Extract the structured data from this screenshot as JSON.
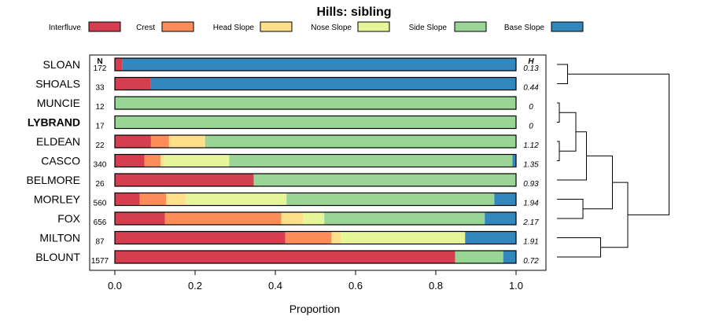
{
  "chart_data": {
    "type": "bar",
    "subtype": "stacked-horizontal-proportion-with-dendrogram",
    "title": "Hills: sibling",
    "xlabel": "Proportion",
    "ylabel": "",
    "xlim": [
      0,
      1
    ],
    "x_ticks": [
      "0.0",
      "0.2",
      "0.4",
      "0.6",
      "0.8",
      "1.0"
    ],
    "x_tick_values": [
      0,
      0.2,
      0.4,
      0.6,
      0.8,
      1.0
    ],
    "legend": {
      "position": "top",
      "items": [
        {
          "label": "Interfluve",
          "color": "#D53E4F"
        },
        {
          "label": "Crest",
          "color": "#FC8D59"
        },
        {
          "label": "Head Slope",
          "color": "#FEE08B"
        },
        {
          "label": "Nose Slope",
          "color": "#E6F598"
        },
        {
          "label": "Side Slope",
          "color": "#99D594"
        },
        {
          "label": "Base Slope",
          "color": "#3288BD"
        }
      ]
    },
    "n_header": "N",
    "h_header": "H",
    "rows": [
      {
        "name": "SLOAN",
        "n": "172",
        "h": "0.13",
        "bold": false,
        "values": [
          0.018,
          0,
          0,
          0,
          0,
          0.982
        ]
      },
      {
        "name": "SHOALS",
        "n": "33",
        "h": "0.44",
        "bold": false,
        "values": [
          0.09,
          0,
          0,
          0,
          0,
          0.91
        ]
      },
      {
        "name": "MUNCIE",
        "n": "12",
        "h": "0",
        "bold": false,
        "values": [
          0,
          0,
          0,
          0,
          1.0,
          0
        ]
      },
      {
        "name": "LYBRAND",
        "n": "17",
        "h": "0",
        "bold": true,
        "values": [
          0,
          0,
          0,
          0,
          1.0,
          0
        ]
      },
      {
        "name": "ELDEAN",
        "n": "22",
        "h": "1.12",
        "bold": false,
        "values": [
          0.09,
          0.045,
          0.09,
          0,
          0.775,
          0
        ]
      },
      {
        "name": "CASCO",
        "n": "340",
        "h": "1.35",
        "bold": false,
        "values": [
          0.074,
          0.04,
          0.009,
          0.162,
          0.706,
          0.009
        ]
      },
      {
        "name": "BELMORE",
        "n": "26",
        "h": "0.93",
        "bold": false,
        "values": [
          0.346,
          0,
          0,
          0,
          0.654,
          0
        ]
      },
      {
        "name": "MORLEY",
        "n": "560",
        "h": "1.94",
        "bold": false,
        "values": [
          0.062,
          0.066,
          0.05,
          0.25,
          0.518,
          0.054
        ]
      },
      {
        "name": "FOX",
        "n": "656",
        "h": "2.17",
        "bold": false,
        "values": [
          0.125,
          0.29,
          0.055,
          0.052,
          0.4,
          0.078
        ]
      },
      {
        "name": "MILTON",
        "n": "87",
        "h": "1.91",
        "bold": false,
        "values": [
          0.425,
          0.115,
          0.023,
          0.31,
          0,
          0.127
        ]
      },
      {
        "name": "BLOUNT",
        "n": "1577",
        "h": "0.72",
        "bold": false,
        "values": [
          0.848,
          0,
          0,
          0,
          0.12,
          0.032
        ]
      }
    ],
    "dendrogram": {
      "merges": [
        {
          "a": "SLOAN",
          "b": "SHOALS",
          "height": 0.09
        },
        {
          "a": "MUNCIE",
          "b": "LYBRAND",
          "height": 0.02
        },
        {
          "a": "ELDEAN",
          "b": "CASCO",
          "height": 0.02
        },
        {
          "a": "MUNCIE+LYBRAND",
          "b": "ELDEAN+CASCO",
          "height": 0.16
        },
        {
          "a": "MUNCIE+LYBRAND+ELDEAN+CASCO",
          "b": "BELMORE",
          "height": 0.25
        },
        {
          "a": "MORLEY",
          "b": "FOX",
          "height": 0.22
        },
        {
          "a": "MUNCIE..BELMORE",
          "b": "MORLEY+FOX",
          "height": 0.47
        },
        {
          "a": "MILTON",
          "b": "BLOUNT",
          "height": 0.37
        },
        {
          "a": "MUNCIE..FOX",
          "b": "MILTON+BLOUNT",
          "height": 0.6
        },
        {
          "a": "SLOAN+SHOALS",
          "b": "rest",
          "height": 0.95
        }
      ]
    }
  }
}
